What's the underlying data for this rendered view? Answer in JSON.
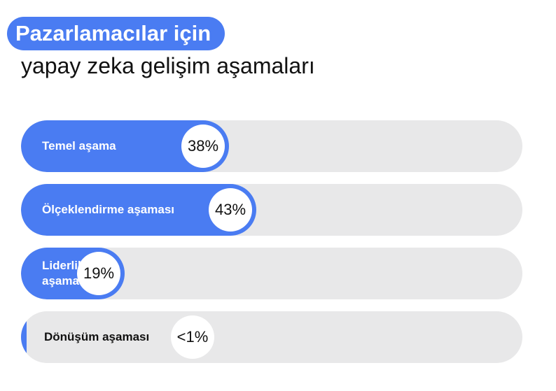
{
  "title": "Pazarlamacılar için",
  "subtitle": "yapay zeka gelişim aşamaları",
  "colors": {
    "accent": "#4a7cf2",
    "track": "#e8e8e9",
    "text_dark": "#111111",
    "text_light": "#ffffff"
  },
  "chart_data": {
    "type": "bar",
    "orientation": "horizontal",
    "categories": [
      "Temel aşama",
      "Ölçeklendirme aşaması",
      "Liderlik\naşaması",
      "Dönüşüm aşaması"
    ],
    "values": [
      38,
      43,
      19,
      0.5
    ],
    "value_labels": [
      "38%",
      "43%",
      "19%",
      "<1%"
    ],
    "unit": "%",
    "xlim": [
      0,
      100
    ]
  }
}
